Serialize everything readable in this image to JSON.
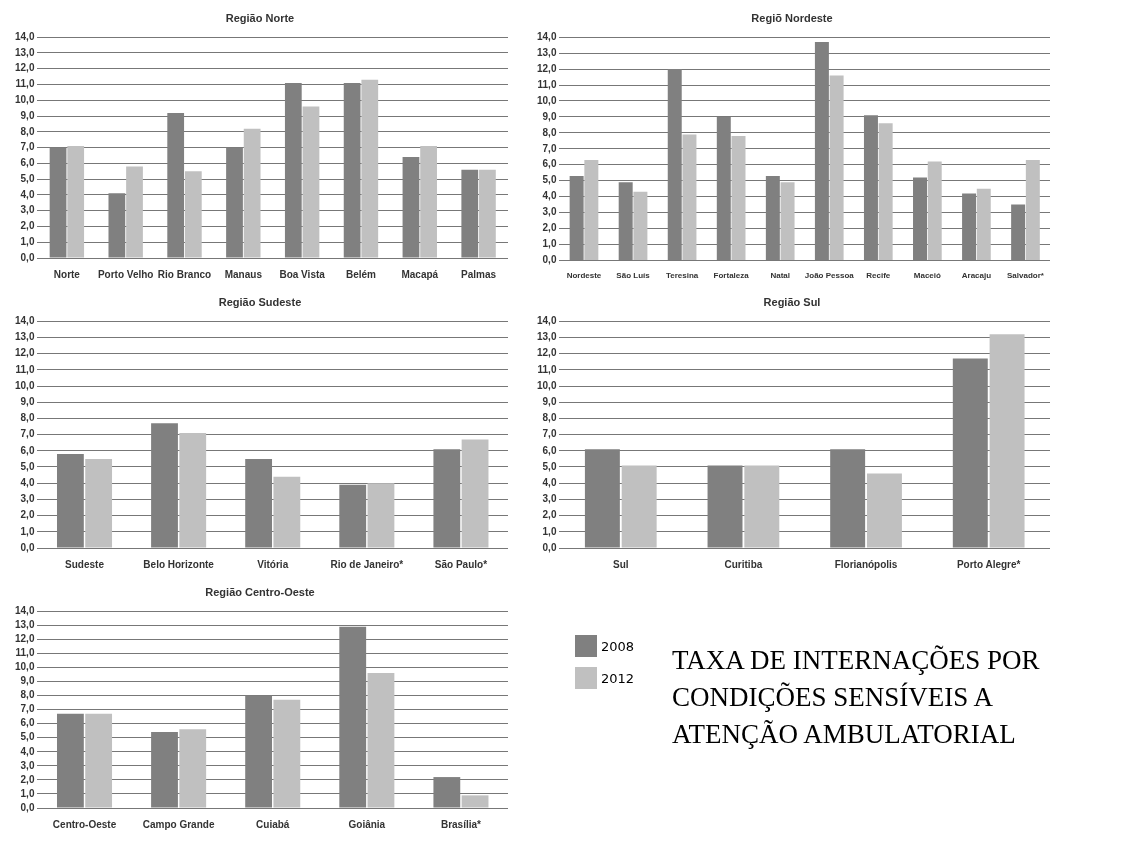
{
  "chart_data": [
    {
      "type": "bar",
      "title": "Região Norte",
      "categories": [
        "Norte",
        "Porto Velho",
        "Rio Branco",
        "Manaus",
        "Boa Vista",
        "Belém",
        "Macapá",
        "Palmas"
      ],
      "series": [
        {
          "color": "#808080",
          "values": [
            7.0,
            4.1,
            9.2,
            7.0,
            11.1,
            11.1,
            6.4,
            5.6
          ]
        },
        {
          "color": "#c0c0c0",
          "values": [
            7.1,
            5.8,
            5.5,
            8.2,
            9.6,
            11.3,
            7.1,
            5.6
          ]
        }
      ],
      "ylim": [
        0,
        14
      ],
      "yticks": [
        {
          "value": 0,
          "label": "0,0"
        },
        {
          "value": 1,
          "label": "1,0"
        },
        {
          "value": 2,
          "label": "2,0"
        },
        {
          "value": 3,
          "label": "3,0"
        },
        {
          "value": 4,
          "label": "4,0"
        },
        {
          "value": 5,
          "label": "5,0"
        },
        {
          "value": 6,
          "label": "6,0"
        },
        {
          "value": 7,
          "label": "7,0"
        },
        {
          "value": 8,
          "label": "8,0"
        },
        {
          "value": 9,
          "label": "9,0"
        },
        {
          "value": 10,
          "label": "10,0"
        },
        {
          "value": 11,
          "label": "11,0"
        },
        {
          "value": 12,
          "label": "12,0"
        },
        {
          "value": 13,
          "label": "13,0"
        },
        {
          "value": 14,
          "label": "14,0"
        }
      ],
      "grid": "y"
    },
    {
      "type": "bar",
      "title": "Regiõ Nordeste",
      "categories": [
        "Nordeste",
        "São Luís",
        "Teresina",
        "Fortaleza",
        "Natal",
        "João Pessoa",
        "Recife",
        "Maceió",
        "Aracaju",
        "Salvador*"
      ],
      "series": [
        {
          "color": "#808080",
          "values": [
            5.3,
            4.9,
            12.0,
            9.0,
            5.3,
            13.7,
            9.1,
            5.2,
            4.2,
            3.5
          ]
        },
        {
          "color": "#c0c0c0",
          "values": [
            6.3,
            4.3,
            7.9,
            7.8,
            4.9,
            11.6,
            8.6,
            6.2,
            4.5,
            6.3
          ]
        }
      ],
      "ylim": [
        0,
        14
      ],
      "yticks": [
        {
          "value": 0,
          "label": "0,0"
        },
        {
          "value": 1,
          "label": "1,0"
        },
        {
          "value": 2,
          "label": "2,0"
        },
        {
          "value": 3,
          "label": "3,0"
        },
        {
          "value": 4,
          "label": "4,0"
        },
        {
          "value": 5,
          "label": "5,0"
        },
        {
          "value": 6,
          "label": "6,0"
        },
        {
          "value": 7,
          "label": "7,0"
        },
        {
          "value": 8,
          "label": "8,0"
        },
        {
          "value": 9,
          "label": "9,0"
        },
        {
          "value": 10,
          "label": "10,0"
        },
        {
          "value": 11,
          "label": "11,0"
        },
        {
          "value": 12,
          "label": "12,0"
        },
        {
          "value": 13,
          "label": "13,0"
        },
        {
          "value": 14,
          "label": "14,0"
        }
      ],
      "grid": "y"
    },
    {
      "type": "bar",
      "title": "Região Sudeste",
      "categories": [
        "Sudeste",
        "Belo Horizonte",
        "Vitória",
        "Rio de Janeiro*",
        "São Paulo*"
      ],
      "series": [
        {
          "color": "#808080",
          "values": [
            5.8,
            7.7,
            5.5,
            3.9,
            6.1
          ]
        },
        {
          "color": "#c0c0c0",
          "values": [
            5.5,
            7.1,
            4.4,
            4.0,
            6.7
          ]
        }
      ],
      "ylim": [
        0,
        14
      ],
      "yticks": [
        {
          "value": 0,
          "label": "0,0"
        },
        {
          "value": 1,
          "label": "1,0"
        },
        {
          "value": 2,
          "label": "2,0"
        },
        {
          "value": 3,
          "label": "3,0"
        },
        {
          "value": 4,
          "label": "4,0"
        },
        {
          "value": 5,
          "label": "5,0"
        },
        {
          "value": 6,
          "label": "6,0"
        },
        {
          "value": 7,
          "label": "7,0"
        },
        {
          "value": 8,
          "label": "8,0"
        },
        {
          "value": 9,
          "label": "9,0"
        },
        {
          "value": 10,
          "label": "10,0"
        },
        {
          "value": 11,
          "label": "11,0"
        },
        {
          "value": 12,
          "label": "12,0"
        },
        {
          "value": 13,
          "label": "13,0"
        },
        {
          "value": 14,
          "label": "14,0"
        }
      ],
      "grid": "y"
    },
    {
      "type": "bar",
      "title": "Região Sul",
      "categories": [
        "Sul",
        "Curitiba",
        "Florianópolis",
        "Porto Alegre*"
      ],
      "series": [
        {
          "color": "#808080",
          "values": [
            6.1,
            5.1,
            6.1,
            11.7
          ]
        },
        {
          "color": "#c0c0c0",
          "values": [
            5.1,
            5.1,
            4.6,
            13.2
          ]
        }
      ],
      "ylim": [
        0,
        14
      ],
      "yticks": [
        {
          "value": 0,
          "label": "0,0"
        },
        {
          "value": 1,
          "label": "1,0"
        },
        {
          "value": 2,
          "label": "2,0"
        },
        {
          "value": 3,
          "label": "3,0"
        },
        {
          "value": 4,
          "label": "4,0"
        },
        {
          "value": 5,
          "label": "5,0"
        },
        {
          "value": 6,
          "label": "6,0"
        },
        {
          "value": 7,
          "label": "7,0"
        },
        {
          "value": 8,
          "label": "8,0"
        },
        {
          "value": 9,
          "label": "9,0"
        },
        {
          "value": 10,
          "label": "10,0"
        },
        {
          "value": 11,
          "label": "11,0"
        },
        {
          "value": 12,
          "label": "12,0"
        },
        {
          "value": 13,
          "label": "13,0"
        },
        {
          "value": 14,
          "label": "14,0"
        }
      ],
      "grid": "y"
    },
    {
      "type": "bar",
      "title": "Região Centro-Oeste",
      "categories": [
        "Centro-Oeste",
        "Campo Grande",
        "Cuiabá",
        "Goiânia",
        "Brasília*"
      ],
      "series": [
        {
          "name": "2008",
          "color": "#808080",
          "values": [
            6.7,
            5.4,
            8.0,
            12.9,
            2.2
          ]
        },
        {
          "name": "2012",
          "color": "#c0c0c0",
          "values": [
            6.7,
            5.6,
            7.7,
            9.6,
            0.9
          ]
        }
      ],
      "ylim": [
        0,
        14
      ],
      "yticks": [
        {
          "value": 0,
          "label": "0,0"
        },
        {
          "value": 1,
          "label": "1,0"
        },
        {
          "value": 2,
          "label": "2,0"
        },
        {
          "value": 3,
          "label": "3,0"
        },
        {
          "value": 4,
          "label": "4,0"
        },
        {
          "value": 5,
          "label": "5,0"
        },
        {
          "value": 6,
          "label": "6,0"
        },
        {
          "value": 7,
          "label": "7,0"
        },
        {
          "value": 8,
          "label": "8,0"
        },
        {
          "value": 9,
          "label": "9,0"
        },
        {
          "value": 10,
          "label": "10,0"
        },
        {
          "value": 11,
          "label": "11,0"
        },
        {
          "value": 12,
          "label": "12,0"
        },
        {
          "value": 13,
          "label": "13,0"
        },
        {
          "value": 14,
          "label": "14,0"
        }
      ],
      "grid": "y",
      "legend": "right"
    },
    {
      "type": "other",
      "title": "TAXA DE INTERNAÇÕES POR  CONDIÇÕES SENSÍVEIS A ATENÇÃO AMBULATORIAL"
    }
  ]
}
